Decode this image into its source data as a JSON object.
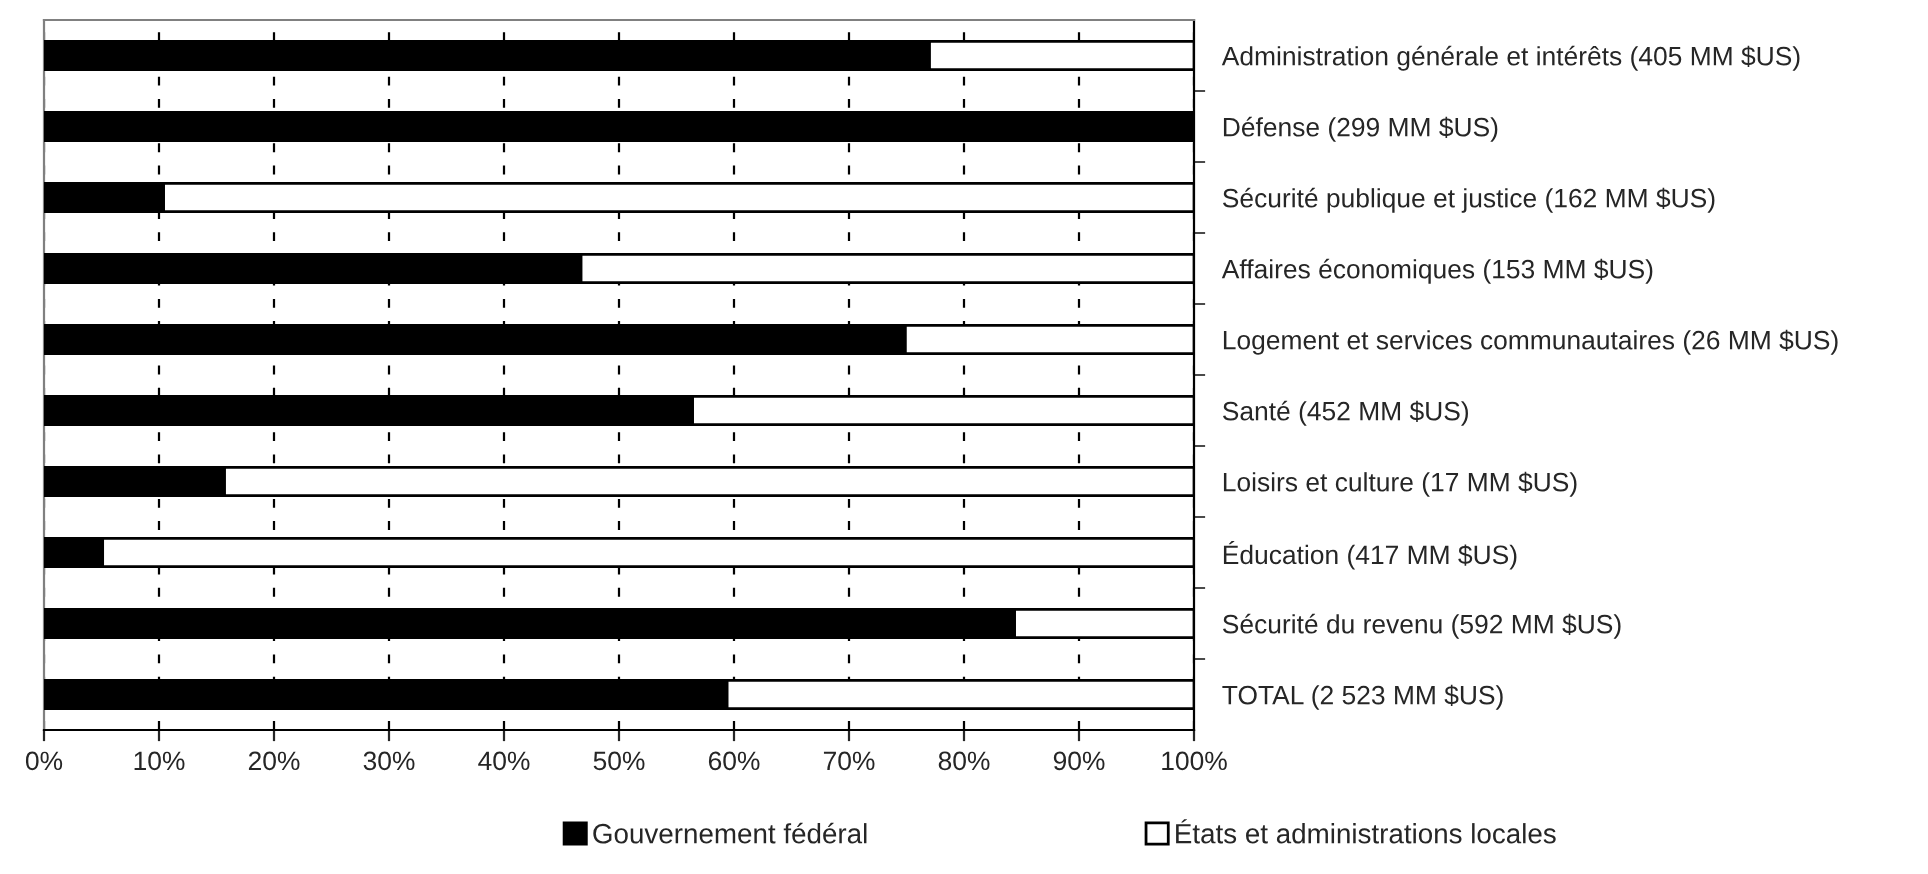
{
  "chart_data": {
    "type": "bar",
    "orientation": "horizontal",
    "stacked": true,
    "categories": [
      "Administration générale et intérêts (405 MM $US)",
      "Défense (299 MM $US)",
      "Sécurité publique et justice (162 MM $US)",
      "Affaires économiques (153 MM $US)",
      "Logement et services communautaires (26 MM $US)",
      "Santé (452 MM $US)",
      "Loisirs et culture (17 MM $US)",
      "Éducation (417 MM $US)",
      "Sécurité du revenu (592 MM $US)",
      "TOTAL (2 523 MM $US)"
    ],
    "series": [
      {
        "name": "Gouvernement fédéral",
        "color": "#000000",
        "values": [
          77.0,
          100,
          10.4,
          46.7,
          74.9,
          56.4,
          15.7,
          5.1,
          84.4,
          59.4
        ]
      },
      {
        "name": "États et administrations locales",
        "color": "#ffffff",
        "values": [
          23.0,
          null,
          89.6,
          53.3,
          25.1,
          43.6,
          84.3,
          94.9,
          15.6,
          40.6
        ]
      }
    ],
    "xlim": [
      0,
      100
    ],
    "xticks": [
      {
        "value": 0,
        "label": "0%"
      },
      {
        "value": 10,
        "label": "10%"
      },
      {
        "value": 20,
        "label": "20%"
      },
      {
        "value": 30,
        "label": "30%"
      },
      {
        "value": 40,
        "label": "40%"
      },
      {
        "value": 50,
        "label": "50%"
      },
      {
        "value": 60,
        "label": "60%"
      },
      {
        "value": 70,
        "label": "70%"
      },
      {
        "value": 80,
        "label": "80%"
      },
      {
        "value": 90,
        "label": "90%"
      },
      {
        "value": 100,
        "label": "100%"
      }
    ],
    "grid": "x",
    "legend": "bottom"
  }
}
